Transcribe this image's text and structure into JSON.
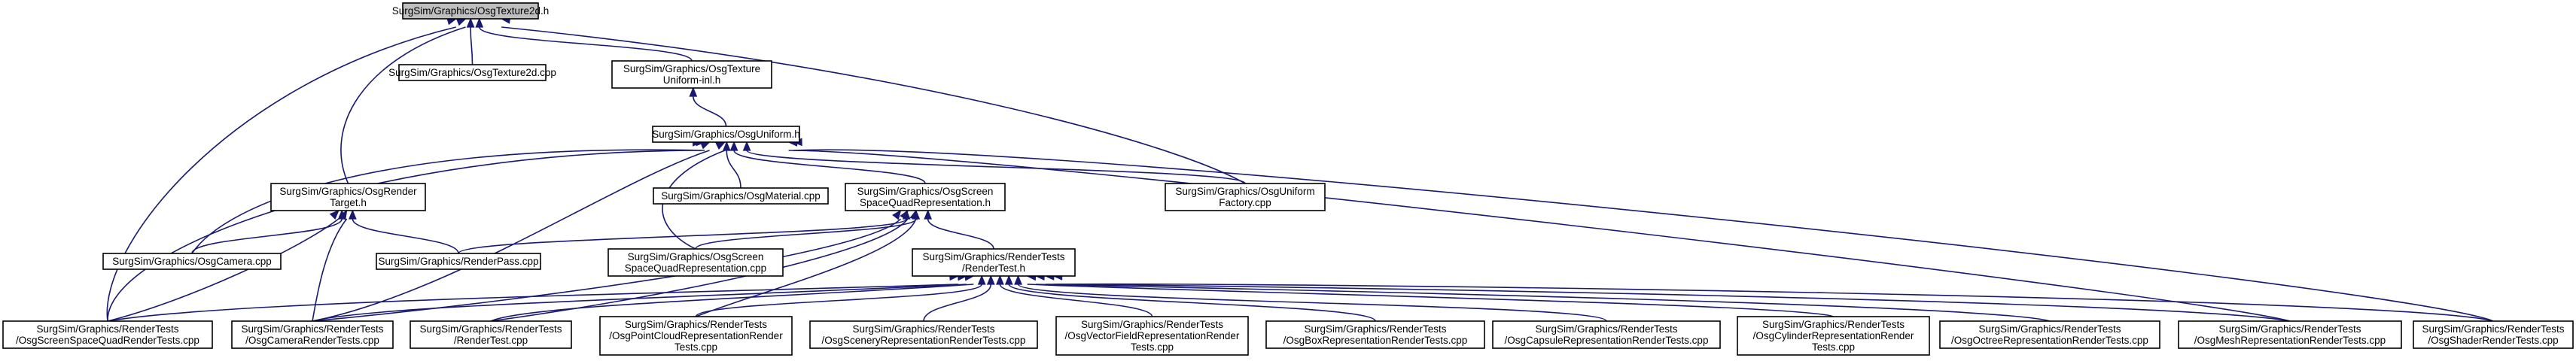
{
  "graph": {
    "nodes": [
      {
        "id": "texture2d_h",
        "lines": [
          "SurgSim/Graphics/OsgTexture2d.h"
        ],
        "focus": true
      },
      {
        "id": "texture2d_cpp",
        "lines": [
          "SurgSim/Graphics/OsgTexture2d.cpp"
        ]
      },
      {
        "id": "texture_uniform_inl",
        "lines": [
          "SurgSim/Graphics/OsgTexture",
          "Uniform-inl.h"
        ]
      },
      {
        "id": "uniform_h",
        "lines": [
          "SurgSim/Graphics/OsgUniform.h"
        ]
      },
      {
        "id": "render_target_h",
        "lines": [
          "SurgSim/Graphics/OsgRender",
          "Target.h"
        ]
      },
      {
        "id": "material_cpp",
        "lines": [
          "SurgSim/Graphics/OsgMaterial.cpp"
        ]
      },
      {
        "id": "screen_quad_h",
        "lines": [
          "SurgSim/Graphics/OsgScreen",
          "SpaceQuadRepresentation.h"
        ]
      },
      {
        "id": "uniform_factory_cpp",
        "lines": [
          "SurgSim/Graphics/OsgUniform",
          "Factory.cpp"
        ]
      },
      {
        "id": "camera_cpp",
        "lines": [
          "SurgSim/Graphics/OsgCamera.cpp"
        ]
      },
      {
        "id": "render_pass_cpp",
        "lines": [
          "SurgSim/Graphics/RenderPass.cpp"
        ]
      },
      {
        "id": "screen_quad_cpp",
        "lines": [
          "SurgSim/Graphics/OsgScreen",
          "SpaceQuadRepresentation.cpp"
        ]
      },
      {
        "id": "render_test_h",
        "lines": [
          "SurgSim/Graphics/RenderTests",
          "/RenderTest.h"
        ]
      },
      {
        "id": "t_screen_quad",
        "lines": [
          "SurgSim/Graphics/RenderTests",
          "/OsgScreenSpaceQuadRenderTests.cpp"
        ]
      },
      {
        "id": "t_camera",
        "lines": [
          "SurgSim/Graphics/RenderTests",
          "/OsgCameraRenderTests.cpp"
        ]
      },
      {
        "id": "t_render_test",
        "lines": [
          "SurgSim/Graphics/RenderTests",
          "/RenderTest.cpp"
        ]
      },
      {
        "id": "t_point_cloud",
        "lines": [
          "SurgSim/Graphics/RenderTests",
          "/OsgPointCloudRepresentationRender",
          "Tests.cpp"
        ]
      },
      {
        "id": "t_scenery",
        "lines": [
          "SurgSim/Graphics/RenderTests",
          "/OsgSceneryRepresentationRenderTests.cpp"
        ]
      },
      {
        "id": "t_vector_field",
        "lines": [
          "SurgSim/Graphics/RenderTests",
          "/OsgVectorFieldRepresentationRender",
          "Tests.cpp"
        ]
      },
      {
        "id": "t_box",
        "lines": [
          "SurgSim/Graphics/RenderTests",
          "/OsgBoxRepresentationRenderTests.cpp"
        ]
      },
      {
        "id": "t_capsule",
        "lines": [
          "SurgSim/Graphics/RenderTests",
          "/OsgCapsuleRepresentationRenderTests.cpp"
        ]
      },
      {
        "id": "t_cylinder",
        "lines": [
          "SurgSim/Graphics/RenderTests",
          "/OsgCylinderRepresentationRender",
          "Tests.cpp"
        ]
      },
      {
        "id": "t_octree",
        "lines": [
          "SurgSim/Graphics/RenderTests",
          "/OsgOctreeRepresentationRenderTests.cpp"
        ]
      },
      {
        "id": "t_mesh",
        "lines": [
          "SurgSim/Graphics/RenderTests",
          "/OsgMeshRepresentationRenderTests.cpp"
        ]
      },
      {
        "id": "t_shader",
        "lines": [
          "SurgSim/Graphics/RenderTests",
          "/OsgShaderRenderTests.cpp"
        ]
      }
    ],
    "edges": [
      [
        "texture2d_h",
        "texture2d_cpp"
      ],
      [
        "texture2d_h",
        "texture_uniform_inl"
      ],
      [
        "texture2d_h",
        "render_target_h"
      ],
      [
        "texture2d_h",
        "uniform_factory_cpp"
      ],
      [
        "texture2d_h",
        "t_screen_quad"
      ],
      [
        "texture_uniform_inl",
        "uniform_h"
      ],
      [
        "uniform_h",
        "material_cpp"
      ],
      [
        "uniform_h",
        "screen_quad_h"
      ],
      [
        "uniform_h",
        "uniform_factory_cpp"
      ],
      [
        "uniform_h",
        "camera_cpp"
      ],
      [
        "uniform_h",
        "screen_quad_cpp"
      ],
      [
        "uniform_h",
        "t_screen_quad"
      ],
      [
        "uniform_h",
        "t_camera"
      ],
      [
        "uniform_h",
        "t_mesh"
      ],
      [
        "uniform_h",
        "t_shader"
      ],
      [
        "render_target_h",
        "camera_cpp"
      ],
      [
        "render_target_h",
        "render_pass_cpp"
      ],
      [
        "render_target_h",
        "t_screen_quad"
      ],
      [
        "render_target_h",
        "t_camera"
      ],
      [
        "screen_quad_h",
        "render_pass_cpp"
      ],
      [
        "screen_quad_h",
        "screen_quad_cpp"
      ],
      [
        "screen_quad_h",
        "render_test_h"
      ],
      [
        "screen_quad_h",
        "t_camera"
      ],
      [
        "screen_quad_h",
        "t_render_test"
      ],
      [
        "screen_quad_h",
        "t_point_cloud"
      ],
      [
        "render_test_h",
        "t_screen_quad"
      ],
      [
        "render_test_h",
        "t_camera"
      ],
      [
        "render_test_h",
        "t_render_test"
      ],
      [
        "render_test_h",
        "t_point_cloud"
      ],
      [
        "render_test_h",
        "t_scenery"
      ],
      [
        "render_test_h",
        "t_vector_field"
      ],
      [
        "render_test_h",
        "t_box"
      ],
      [
        "render_test_h",
        "t_capsule"
      ],
      [
        "render_test_h",
        "t_cylinder"
      ],
      [
        "render_test_h",
        "t_octree"
      ],
      [
        "render_test_h",
        "t_mesh"
      ],
      [
        "render_test_h",
        "t_shader"
      ]
    ]
  }
}
